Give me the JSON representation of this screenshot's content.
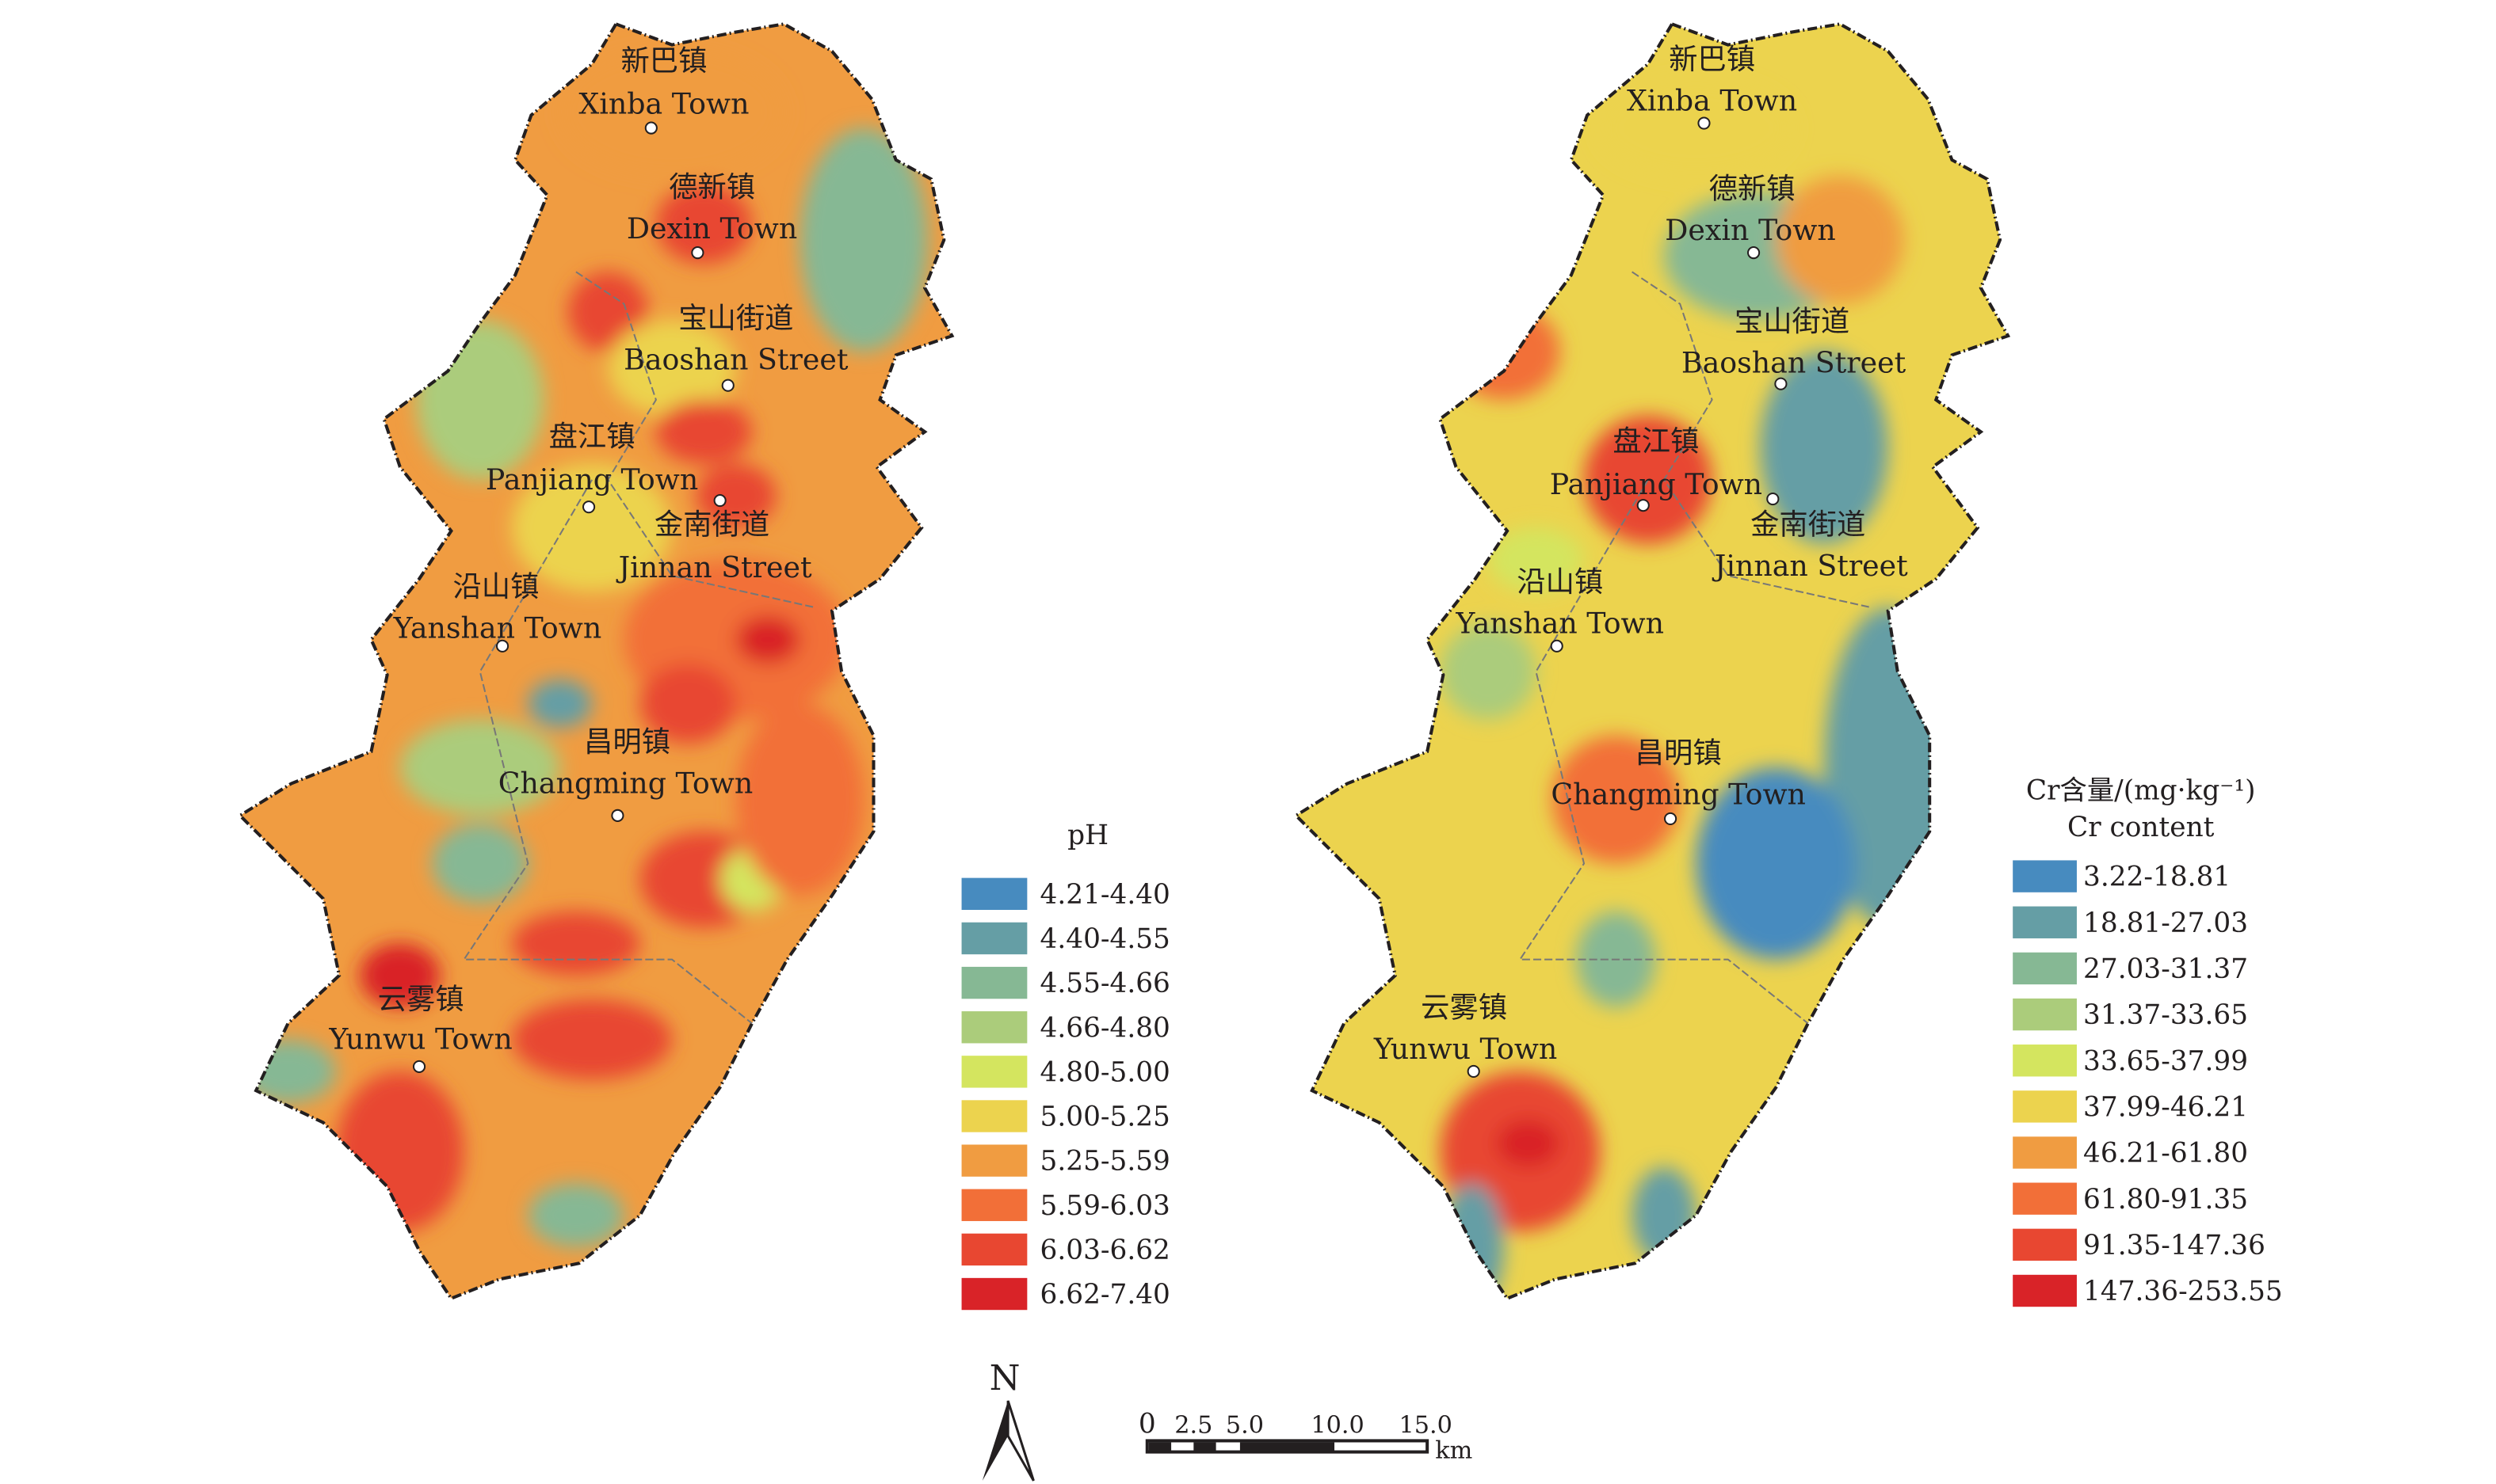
{
  "maps": [
    {
      "id": "ph",
      "legend": {
        "title": "pH",
        "subtitle": null,
        "classes": [
          {
            "label": "4.21-4.40",
            "color": "#478bbf"
          },
          {
            "label": "4.40-4.55",
            "color": "#659ea5"
          },
          {
            "label": "4.55-4.66",
            "color": "#86b894"
          },
          {
            "label": "4.66-4.80",
            "color": "#abcc7b"
          },
          {
            "label": "4.80-5.00",
            "color": "#d4e55f"
          },
          {
            "label": "5.00-5.25",
            "color": "#ecd34e"
          },
          {
            "label": "5.25-5.59",
            "color": "#f09c41"
          },
          {
            "label": "5.59-6.03",
            "color": "#f26f38"
          },
          {
            "label": "6.03-6.62",
            "color": "#e84731"
          },
          {
            "label": "6.62-7.40",
            "color": "#d92328"
          }
        ]
      }
    },
    {
      "id": "cr",
      "legend": {
        "title": "Cr含量/(mg·kg⁻¹)",
        "subtitle": "Cr content",
        "classes": [
          {
            "label": "3.22-18.81",
            "color": "#478bbf"
          },
          {
            "label": "18.81-27.03",
            "color": "#659ea5"
          },
          {
            "label": "27.03-31.37",
            "color": "#86b894"
          },
          {
            "label": "31.37-33.65",
            "color": "#abcc7b"
          },
          {
            "label": "33.65-37.99",
            "color": "#d4e55f"
          },
          {
            "label": "37.99-46.21",
            "color": "#ecd34e"
          },
          {
            "label": "46.21-61.80",
            "color": "#f09c41"
          },
          {
            "label": "61.80-91.35",
            "color": "#f26f38"
          },
          {
            "label": "91.35-147.36",
            "color": "#e84731"
          },
          {
            "label": "147.36-253.55",
            "color": "#d92328"
          }
        ]
      }
    }
  ],
  "towns": [
    {
      "zh": "新巴镇",
      "en": "Xinba Town"
    },
    {
      "zh": "德新镇",
      "en": "Dexin Town"
    },
    {
      "zh": "宝山街道",
      "en": "Baoshan Street"
    },
    {
      "zh": "盘江镇",
      "en": "Panjiang Town"
    },
    {
      "zh": "金南街道",
      "en": "Jinnan Street"
    },
    {
      "zh": "沿山镇",
      "en": "Yanshan Town"
    },
    {
      "zh": "昌明镇",
      "en": "Changming Town"
    },
    {
      "zh": "云雾镇",
      "en": "Yunwu Town"
    }
  ],
  "north_arrow": {
    "label": "N"
  },
  "scale_bar": {
    "ticks": [
      "0",
      "2.5",
      "5.0",
      "10.0",
      "15.0"
    ],
    "unit": "km"
  }
}
